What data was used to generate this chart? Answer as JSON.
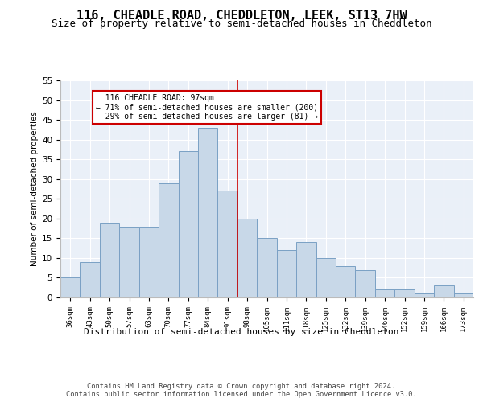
{
  "title1": "116, CHEADLE ROAD, CHEDDLETON, LEEK, ST13 7HW",
  "title2": "Size of property relative to semi-detached houses in Cheddleton",
  "xlabel": "Distribution of semi-detached houses by size in Cheddleton",
  "ylabel": "Number of semi-detached properties",
  "categories": [
    "36sqm",
    "43sqm",
    "50sqm",
    "57sqm",
    "63sqm",
    "70sqm",
    "77sqm",
    "84sqm",
    "91sqm",
    "98sqm",
    "105sqm",
    "111sqm",
    "118sqm",
    "125sqm",
    "132sqm",
    "139sqm",
    "146sqm",
    "152sqm",
    "159sqm",
    "166sqm",
    "173sqm"
  ],
  "values": [
    5,
    9,
    19,
    18,
    18,
    29,
    37,
    43,
    27,
    20,
    15,
    12,
    14,
    10,
    8,
    7,
    2,
    2,
    1,
    3,
    1
  ],
  "bar_color": "#c8d8e8",
  "bar_edge_color": "#7aa0c4",
  "property_label": "116 CHEADLE ROAD: 97sqm",
  "pct_smaller": 71,
  "n_smaller": 200,
  "pct_larger": 29,
  "n_larger": 81,
  "vline_x": 8.5,
  "vline_color": "#cc0000",
  "annotation_box_color": "#cc0000",
  "ylim": [
    0,
    55
  ],
  "yticks": [
    0,
    5,
    10,
    15,
    20,
    25,
    30,
    35,
    40,
    45,
    50,
    55
  ],
  "background_color": "#eaf0f8",
  "footer": "Contains HM Land Registry data © Crown copyright and database right 2024.\nContains public sector information licensed under the Open Government Licence v3.0.",
  "title1_fontsize": 11,
  "title2_fontsize": 9
}
